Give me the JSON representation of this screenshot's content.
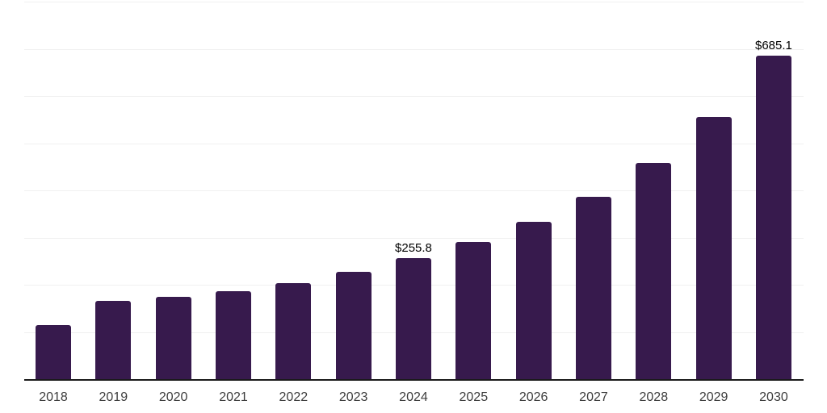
{
  "chart_data": {
    "type": "bar",
    "title": "",
    "xlabel": "",
    "ylabel": "",
    "categories": [
      "2018",
      "2019",
      "2020",
      "2021",
      "2022",
      "2023",
      "2024",
      "2025",
      "2026",
      "2027",
      "2028",
      "2029",
      "2030"
    ],
    "values": [
      114,
      165,
      175,
      186,
      203,
      227,
      255.8,
      290,
      333,
      386,
      459,
      555,
      685.1
    ],
    "data_labels": {
      "2024": "$255.8",
      "2030": "$685.1"
    },
    "ylim": [
      0,
      800
    ],
    "gridline_values": [
      100,
      200,
      300,
      400,
      500,
      600,
      700,
      800
    ],
    "grid": true,
    "legend": false,
    "y_tick_labels_visible": false,
    "colors": {
      "bar": "#371a4d",
      "gridline": "#f0f0f0",
      "axis_line": "#1a1a1a",
      "tick_label": "#3d3d3d",
      "data_label": "#000000",
      "background": "#ffffff"
    }
  }
}
